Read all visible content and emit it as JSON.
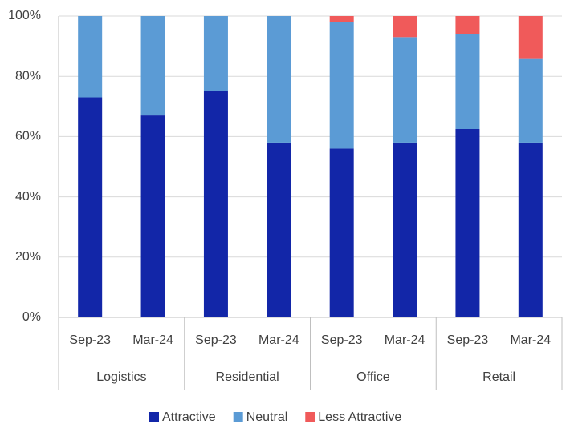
{
  "chart_data": {
    "type": "stacked_bar",
    "categories": [
      "Sep-23",
      "Mar-24",
      "Sep-23",
      "Mar-24",
      "Sep-23",
      "Mar-24",
      "Sep-23",
      "Mar-24"
    ],
    "groups": [
      "Logistics",
      "Residential",
      "Office",
      "Retail"
    ],
    "series": [
      {
        "name": "Attractive",
        "color": "#1226a8",
        "values": [
          73,
          67,
          75,
          58,
          56,
          58,
          62.5,
          58
        ]
      },
      {
        "name": "Neutral",
        "color": "#5b9bd5",
        "values": [
          27,
          33,
          25,
          42,
          42,
          35,
          31.5,
          28
        ]
      },
      {
        "name": "Less Attractive",
        "color": "#f05a5a",
        "values": [
          0,
          0,
          0,
          0,
          2,
          7,
          6,
          14
        ]
      }
    ],
    "ylim": [
      0,
      100
    ],
    "yticks": [
      {
        "value": 0,
        "label": "0%"
      },
      {
        "value": 20,
        "label": "20%"
      },
      {
        "value": 40,
        "label": "40%"
      },
      {
        "value": 60,
        "label": "60%"
      },
      {
        "value": 80,
        "label": "80%"
      },
      {
        "value": 100,
        "label": "100%"
      }
    ],
    "grid": true,
    "legend": "bottom"
  }
}
